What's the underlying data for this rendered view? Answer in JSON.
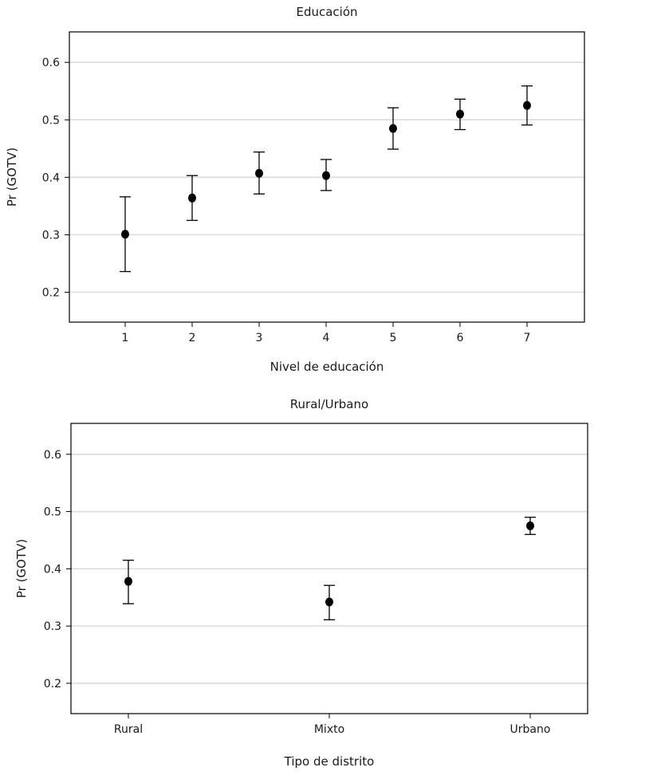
{
  "chart_data": [
    {
      "type": "scatter",
      "title": "Educación",
      "xlabel": "Nivel de educación",
      "ylabel": "Pr (GOTV)",
      "categories": [
        "1",
        "2",
        "3",
        "4",
        "5",
        "6",
        "7"
      ],
      "values": [
        0.301,
        0.364,
        0.407,
        0.403,
        0.485,
        0.51,
        0.525
      ],
      "ci_low": [
        0.236,
        0.325,
        0.371,
        0.377,
        0.449,
        0.483,
        0.491
      ],
      "ci_high": [
        0.366,
        0.403,
        0.444,
        0.431,
        0.521,
        0.536,
        0.559
      ],
      "yticks": [
        "0.2",
        "0.3",
        "0.4",
        "0.5",
        "0.6"
      ],
      "ylim": [
        0.148,
        0.653
      ],
      "grid": "horizontal"
    },
    {
      "type": "scatter",
      "title": "Rural/Urbano",
      "xlabel": "Tipo de distrito",
      "ylabel": "Pr (GOTV)",
      "categories": [
        "Rural",
        "Mixto",
        "Urbano"
      ],
      "values": [
        0.378,
        0.342,
        0.475
      ],
      "ci_low": [
        0.339,
        0.311,
        0.46
      ],
      "ci_high": [
        0.415,
        0.371,
        0.49
      ],
      "yticks": [
        "0.2",
        "0.3",
        "0.4",
        "0.5",
        "0.6"
      ],
      "ylim": [
        0.147,
        0.654
      ],
      "grid": "horizontal"
    }
  ]
}
